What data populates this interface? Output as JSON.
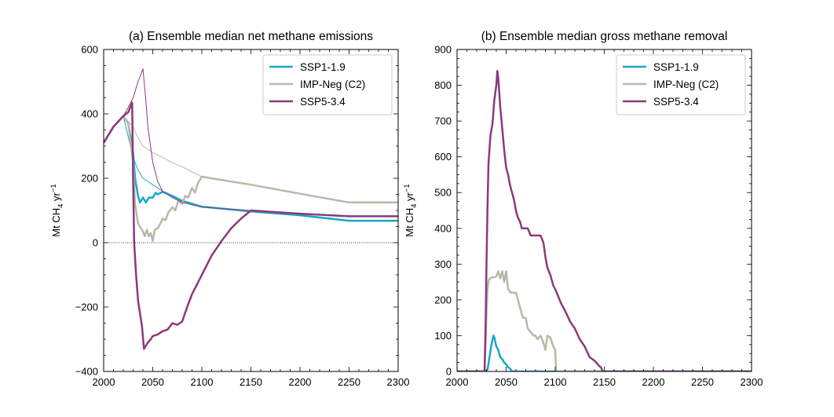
{
  "chart_data": [
    {
      "type": "line",
      "title": "(a) Ensemble median net methane emissions",
      "ylabel": "Mt CH4 yr⁻¹",
      "xlabel": "",
      "xlim": [
        2000,
        2300
      ],
      "ylim": [
        -400,
        600
      ],
      "xticks": [
        2000,
        2050,
        2100,
        2150,
        2200,
        2250,
        2300
      ],
      "yticks": [
        -400,
        -200,
        0,
        200,
        400,
        600
      ],
      "ytick_labels": [
        "−400",
        "−200",
        "0",
        "200",
        "400",
        "600"
      ],
      "zero_line": true,
      "grid": false,
      "legend_position": "top-right",
      "series": [
        {
          "name": "SSP1-1.9",
          "color": "#1aa6c9",
          "width": 2.5,
          "x": [
            2000,
            2010,
            2020,
            2025,
            2030,
            2032,
            2035,
            2037,
            2040,
            2043,
            2046,
            2050,
            2053,
            2055,
            2060,
            2070,
            2080,
            2100,
            2150,
            2200,
            2250,
            2300
          ],
          "y": [
            310,
            360,
            393,
            370,
            280,
            200,
            145,
            125,
            140,
            125,
            140,
            140,
            155,
            150,
            158,
            145,
            130,
            112,
            97,
            85,
            68,
            68
          ]
        },
        {
          "name": "SSP1-1.9 (gross emissions)",
          "color": "#1aa6c9",
          "width": 1,
          "legend": false,
          "x": [
            2000,
            2010,
            2020,
            2030,
            2035,
            2040,
            2050,
            2060,
            2070,
            2080,
            2100,
            2150,
            2200,
            2250,
            2300
          ],
          "y": [
            310,
            360,
            393,
            265,
            225,
            200,
            180,
            160,
            145,
            130,
            112,
            97,
            85,
            68,
            68
          ]
        },
        {
          "name": "IMP-Neg (C2)",
          "color": "#b9b8a8",
          "width": 2.5,
          "x": [
            2000,
            2010,
            2020,
            2025,
            2030,
            2032,
            2035,
            2037,
            2040,
            2042,
            2044,
            2046,
            2048,
            2050,
            2052,
            2055,
            2058,
            2060,
            2063,
            2066,
            2070,
            2073,
            2076,
            2080,
            2083,
            2086,
            2090,
            2093,
            2096,
            2100,
            2150,
            2200,
            2250,
            2300
          ],
          "y": [
            310,
            360,
            393,
            370,
            250,
            120,
            60,
            50,
            35,
            20,
            40,
            20,
            30,
            5,
            40,
            45,
            60,
            75,
            70,
            95,
            110,
            100,
            130,
            120,
            145,
            140,
            170,
            155,
            185,
            205,
            180,
            152,
            125,
            125
          ]
        },
        {
          "name": "IMP-Neg (C2) (gross emissions)",
          "color": "#b9b8a8",
          "width": 1,
          "legend": false,
          "x": [
            2000,
            2010,
            2020,
            2030,
            2035,
            2040,
            2050,
            2060,
            2070,
            2080,
            2090,
            2100,
            2150,
            2200,
            2250,
            2300
          ],
          "y": [
            310,
            360,
            393,
            360,
            325,
            300,
            280,
            265,
            248,
            235,
            220,
            205,
            180,
            152,
            125,
            125
          ]
        },
        {
          "name": "SSP5-3.4",
          "color": "#8b3a7a",
          "width": 2.5,
          "x": [
            2000,
            2010,
            2020,
            2025,
            2029,
            2030,
            2031,
            2033,
            2035,
            2037,
            2039,
            2041,
            2042,
            2045,
            2048,
            2050,
            2055,
            2060,
            2065,
            2070,
            2075,
            2080,
            2085,
            2090,
            2095,
            2100,
            2110,
            2120,
            2130,
            2140,
            2150,
            2200,
            2250,
            2300
          ],
          "y": [
            310,
            360,
            393,
            405,
            435,
            200,
            0,
            -100,
            -180,
            -220,
            -260,
            -330,
            -325,
            -310,
            -300,
            -290,
            -285,
            -275,
            -270,
            -250,
            -255,
            -245,
            -200,
            -160,
            -130,
            -100,
            -40,
            5,
            45,
            75,
            100,
            90,
            82,
            82
          ]
        },
        {
          "name": "SSP5-3.4 (gross emissions)",
          "color": "#8b3a7a",
          "width": 1,
          "legend": false,
          "x": [
            2000,
            2010,
            2020,
            2025,
            2030,
            2035,
            2040,
            2043,
            2045,
            2050,
            2055,
            2060,
            2070,
            2080,
            2100,
            2150,
            2200,
            2250,
            2300
          ],
          "y": [
            310,
            360,
            393,
            420,
            450,
            500,
            540,
            440,
            360,
            250,
            190,
            160,
            140,
            125,
            110,
            100,
            90,
            82,
            82
          ]
        }
      ]
    },
    {
      "type": "line",
      "title": "(b) Ensemble median gross methane removal",
      "ylabel": "Mt CH4 yr⁻¹",
      "xlabel": "",
      "xlim": [
        2000,
        2300
      ],
      "ylim": [
        0,
        900
      ],
      "xticks": [
        2000,
        2050,
        2100,
        2150,
        2200,
        2250,
        2300
      ],
      "yticks": [
        0,
        100,
        200,
        300,
        400,
        500,
        600,
        700,
        800,
        900
      ],
      "ytick_labels": [
        "0",
        "100",
        "200",
        "300",
        "400",
        "500",
        "600",
        "700",
        "800",
        "900"
      ],
      "zero_line": false,
      "grid": false,
      "legend_position": "top-right",
      "series": [
        {
          "name": "SSP1-1.9",
          "color": "#1aa6c9",
          "width": 2.5,
          "x": [
            2000,
            2029,
            2031,
            2033,
            2035,
            2037,
            2038,
            2040,
            2042,
            2044,
            2046,
            2048,
            2050,
            2052,
            2054,
            2056,
            2060,
            2070,
            2080,
            2300
          ],
          "y": [
            0,
            0,
            5,
            40,
            75,
            100,
            95,
            70,
            60,
            40,
            35,
            25,
            20,
            12,
            8,
            0,
            0,
            0,
            0,
            0
          ]
        },
        {
          "name": "IMP-Neg (C2)",
          "color": "#b9b8a8",
          "width": 2.5,
          "x": [
            2000,
            2028,
            2029,
            2030,
            2031,
            2032,
            2033,
            2035,
            2040,
            2042,
            2044,
            2046,
            2048,
            2050,
            2052,
            2055,
            2060,
            2062,
            2065,
            2067,
            2070,
            2072,
            2075,
            2078,
            2080,
            2082,
            2085,
            2088,
            2090,
            2092,
            2095,
            2098,
            2100,
            2101,
            2300
          ],
          "y": [
            0,
            0,
            80,
            160,
            230,
            250,
            260,
            262,
            265,
            280,
            260,
            280,
            250,
            280,
            230,
            220,
            220,
            200,
            170,
            150,
            150,
            120,
            110,
            100,
            100,
            90,
            100,
            80,
            60,
            100,
            95,
            70,
            60,
            0,
            0
          ]
        },
        {
          "name": "SSP5-3.4",
          "color": "#8b3a7a",
          "width": 2.5,
          "x": [
            2000,
            2028,
            2029,
            2030,
            2031,
            2032,
            2034,
            2036,
            2038,
            2040,
            2041,
            2042,
            2044,
            2046,
            2048,
            2050,
            2052,
            2054,
            2056,
            2058,
            2060,
            2062,
            2064,
            2066,
            2068,
            2070,
            2072,
            2075,
            2078,
            2080,
            2085,
            2088,
            2090,
            2092,
            2095,
            2098,
            2100,
            2103,
            2106,
            2110,
            2115,
            2120,
            2125,
            2130,
            2135,
            2140,
            2145,
            2147,
            2148,
            2300
          ],
          "y": [
            0,
            0,
            120,
            300,
            460,
            580,
            660,
            690,
            760,
            800,
            840,
            820,
            740,
            680,
            620,
            570,
            550,
            520,
            500,
            480,
            450,
            430,
            420,
            400,
            400,
            400,
            400,
            380,
            380,
            380,
            380,
            360,
            320,
            290,
            270,
            240,
            230,
            210,
            190,
            170,
            140,
            120,
            90,
            70,
            40,
            30,
            15,
            10,
            0,
            0
          ]
        }
      ]
    }
  ]
}
